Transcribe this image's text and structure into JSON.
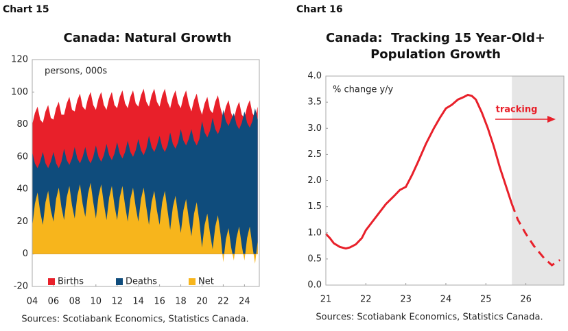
{
  "chart_data": [
    {
      "type": "area",
      "chart_number": "Chart 15",
      "title": "Canada: Natural Growth",
      "unit_label": "persons, 000s",
      "source": "Sources: Scotiabank Economics, Statistics Canada.",
      "x": [
        2004,
        2004.25,
        2004.5,
        2004.75,
        2005,
        2005.25,
        2005.5,
        2005.75,
        2006,
        2006.25,
        2006.5,
        2006.75,
        2007,
        2007.25,
        2007.5,
        2007.75,
        2008,
        2008.25,
        2008.5,
        2008.75,
        2009,
        2009.25,
        2009.5,
        2009.75,
        2010,
        2010.25,
        2010.5,
        2010.75,
        2011,
        2011.25,
        2011.5,
        2011.75,
        2012,
        2012.25,
        2012.5,
        2012.75,
        2013,
        2013.25,
        2013.5,
        2013.75,
        2014,
        2014.25,
        2014.5,
        2014.75,
        2015,
        2015.25,
        2015.5,
        2015.75,
        2016,
        2016.25,
        2016.5,
        2016.75,
        2017,
        2017.25,
        2017.5,
        2017.75,
        2018,
        2018.25,
        2018.5,
        2018.75,
        2019,
        2019.25,
        2019.5,
        2019.75,
        2020,
        2020.25,
        2020.5,
        2020.75,
        2021,
        2021.25,
        2021.5,
        2021.75,
        2022,
        2022.25,
        2022.5,
        2022.75,
        2023,
        2023.25,
        2023.5,
        2023.75,
        2024,
        2024.25,
        2024.5,
        2024.75,
        2025,
        2025.25
      ],
      "series": [
        {
          "name": "Births",
          "color": "#e8202a",
          "values": [
            80,
            87,
            91,
            83,
            81,
            88,
            92,
            84,
            83,
            90,
            94,
            86,
            86,
            93,
            97,
            89,
            88,
            95,
            99,
            91,
            89,
            96,
            100,
            92,
            89,
            96,
            100,
            92,
            89,
            96,
            100,
            92,
            90,
            97,
            101,
            93,
            90,
            97,
            101,
            93,
            91,
            98,
            102,
            94,
            91,
            98,
            102,
            94,
            91,
            98,
            102,
            94,
            90,
            97,
            101,
            93,
            90,
            97,
            101,
            93,
            88,
            95,
            99,
            91,
            86,
            93,
            97,
            89,
            87,
            94,
            98,
            90,
            84,
            91,
            95,
            87,
            83,
            90,
            94,
            86,
            84,
            91,
            95,
            87,
            84,
            91
          ]
        },
        {
          "name": "Deaths",
          "color": "#0f4c7c",
          "values": [
            63,
            56,
            53,
            57,
            63,
            56,
            53,
            57,
            63,
            56,
            53,
            57,
            65,
            58,
            55,
            59,
            66,
            59,
            56,
            60,
            66,
            59,
            56,
            60,
            67,
            60,
            57,
            61,
            68,
            61,
            58,
            62,
            69,
            62,
            59,
            63,
            70,
            63,
            60,
            64,
            71,
            64,
            61,
            65,
            73,
            66,
            63,
            67,
            73,
            66,
            63,
            67,
            75,
            68,
            65,
            69,
            77,
            70,
            67,
            71,
            77,
            70,
            67,
            71,
            82,
            75,
            72,
            76,
            84,
            77,
            74,
            78,
            89,
            82,
            79,
            83,
            87,
            80,
            77,
            81,
            88,
            81,
            78,
            82,
            90,
            83
          ]
        },
        {
          "name": "Net",
          "color": "#f7b51c",
          "values": [
            17,
            31,
            38,
            26,
            18,
            32,
            39,
            27,
            20,
            34,
            41,
            29,
            21,
            35,
            42,
            30,
            22,
            36,
            43,
            31,
            23,
            37,
            44,
            32,
            22,
            36,
            43,
            31,
            21,
            35,
            42,
            30,
            21,
            35,
            42,
            30,
            20,
            34,
            41,
            29,
            20,
            34,
            41,
            29,
            18,
            32,
            39,
            27,
            18,
            32,
            39,
            27,
            15,
            29,
            36,
            24,
            13,
            27,
            34,
            22,
            11,
            25,
            32,
            20,
            4,
            18,
            25,
            13,
            3,
            17,
            24,
            12,
            -5,
            9,
            16,
            4,
            -4,
            10,
            17,
            5,
            -4,
            10,
            17,
            5,
            -6,
            8
          ]
        }
      ],
      "xlim": [
        2004,
        2025.4
      ],
      "ylim": [
        -20,
        120
      ],
      "yticks": [
        -20,
        0,
        20,
        40,
        60,
        80,
        100,
        120
      ],
      "xticks": [
        {
          "value": 2004,
          "label": "04"
        },
        {
          "value": 2006,
          "label": "06"
        },
        {
          "value": 2008,
          "label": "08"
        },
        {
          "value": 2010,
          "label": "10"
        },
        {
          "value": 2012,
          "label": "12"
        },
        {
          "value": 2014,
          "label": "14"
        },
        {
          "value": 2016,
          "label": "16"
        },
        {
          "value": 2018,
          "label": "18"
        },
        {
          "value": 2020,
          "label": "20"
        },
        {
          "value": 2022,
          "label": "22"
        },
        {
          "value": 2024,
          "label": "24"
        }
      ],
      "grid": false,
      "legend": "bottom"
    },
    {
      "type": "line",
      "chart_number": "Chart 16",
      "title": "Canada:  Tracking 15 Year-Old+ Population Growth",
      "unit_label": "% change y/y",
      "annotation": "tracking",
      "source": "Sources: Scotiabank Economics, Statistics Canada.",
      "shade_from": 2025.65,
      "shade_color": "#e6e6e6",
      "series": [
        {
          "color": "#e8202a",
          "style": "solid",
          "x": [
            2021,
            2021.1,
            2021.2,
            2021.35,
            2021.5,
            2021.6,
            2021.75,
            2021.9,
            2022,
            2022.15,
            2022.3,
            2022.5,
            2022.7,
            2022.85,
            2023,
            2023.15,
            2023.3,
            2023.5,
            2023.7,
            2023.85,
            2024,
            2024.15,
            2024.3,
            2024.45,
            2024.55,
            2024.65,
            2024.75,
            2024.9,
            2025.05,
            2025.2,
            2025.35,
            2025.5,
            2025.65
          ],
          "values": [
            0.98,
            0.9,
            0.8,
            0.73,
            0.7,
            0.72,
            0.78,
            0.9,
            1.05,
            1.2,
            1.35,
            1.55,
            1.7,
            1.82,
            1.88,
            2.1,
            2.35,
            2.7,
            3.0,
            3.2,
            3.38,
            3.45,
            3.55,
            3.6,
            3.64,
            3.62,
            3.55,
            3.3,
            3.0,
            2.65,
            2.25,
            1.9,
            1.55
          ]
        },
        {
          "color": "#e8202a",
          "style": "dashed",
          "x": [
            2025.65,
            2025.8,
            2026,
            2026.2,
            2026.45,
            2026.65,
            2026.85
          ],
          "values": [
            1.55,
            1.25,
            0.98,
            0.75,
            0.52,
            0.38,
            0.48
          ]
        }
      ],
      "xlim": [
        2021,
        2026.95
      ],
      "ylim": [
        0,
        4
      ],
      "yticks": [
        {
          "value": 0,
          "label": "0.0"
        },
        0.5,
        {
          "value": 1,
          "label": "1.0"
        },
        1.5,
        {
          "value": 2,
          "label": "2.0"
        },
        2.5,
        {
          "value": 3,
          "label": "3.0"
        },
        3.5,
        {
          "value": 4,
          "label": "4.0"
        }
      ],
      "xticks": [
        {
          "value": 2021,
          "label": "21"
        },
        {
          "value": 2022,
          "label": "22"
        },
        {
          "value": 2023,
          "label": "23"
        },
        {
          "value": 2024,
          "label": "24"
        },
        {
          "value": 2025,
          "label": "25"
        },
        {
          "value": 2026,
          "label": "26"
        }
      ],
      "grid": false
    }
  ]
}
